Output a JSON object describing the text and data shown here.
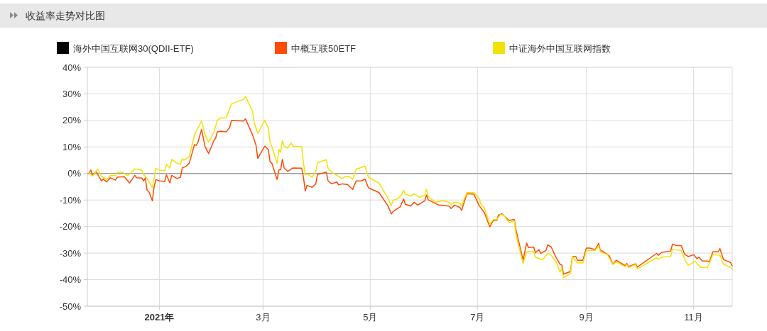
{
  "chart_data": {
    "type": "line",
    "title": "收益率走势对比图",
    "xlim": [
      "2020-11-21",
      "2021-11-23"
    ],
    "ylim": [
      -50,
      40
    ],
    "xticks": [
      {
        "value": "2021-01-01",
        "label": "2021年"
      },
      {
        "value": "2021-03-01",
        "label": "3月"
      },
      {
        "value": "2021-05-01",
        "label": "5月"
      },
      {
        "value": "2021-07-01",
        "label": "7月"
      },
      {
        "value": "2021-09-01",
        "label": "9月"
      },
      {
        "value": "2021-11-01",
        "label": "11月"
      }
    ],
    "yticks": [
      {
        "value": 40,
        "label": "40%"
      },
      {
        "value": 30,
        "label": "30%"
      },
      {
        "value": 20,
        "label": "20%"
      },
      {
        "value": 10,
        "label": "10%"
      },
      {
        "value": 0,
        "label": "0%"
      },
      {
        "value": -10,
        "label": "-10%"
      },
      {
        "value": -20,
        "label": "-20%"
      },
      {
        "value": -30,
        "label": "-30%"
      },
      {
        "value": -40,
        "label": "-40%"
      },
      {
        "value": -50,
        "label": "-50%"
      }
    ],
    "grid": true,
    "legend": "top",
    "ref_lines": [
      {
        "axis": "y",
        "value": 0,
        "color": "#a0a0a0"
      }
    ],
    "series": [
      {
        "name": "海外中国互联网30(QDII-ETF)",
        "color": "#000000"
      },
      {
        "name": "中概互联50ETF",
        "color": "#ff4a00",
        "x": [
          "2020-11-22",
          "2020-11-23",
          "2020-11-24",
          "2020-11-26",
          "2020-11-29",
          "2020-11-30",
          "2020-12-02",
          "2020-12-04",
          "2020-12-07",
          "2020-12-08",
          "2020-12-12",
          "2020-12-15",
          "2020-12-18",
          "2020-12-19",
          "2020-12-22",
          "2020-12-23",
          "2020-12-24",
          "2020-12-25",
          "2020-12-26",
          "2020-12-28",
          "2020-12-29",
          "2020-12-30",
          "2021-01-01",
          "2021-01-04",
          "2021-01-05",
          "2021-01-07",
          "2021-01-08",
          "2021-01-11",
          "2021-01-13",
          "2021-01-14",
          "2021-01-16",
          "2021-01-18",
          "2021-01-21",
          "2021-01-22",
          "2021-01-23",
          "2021-01-25",
          "2021-01-27",
          "2021-01-29",
          "2021-02-01",
          "2021-02-02",
          "2021-02-03",
          "2021-02-05",
          "2021-02-08",
          "2021-02-10",
          "2021-02-11",
          "2021-02-18",
          "2021-02-19",
          "2021-02-23",
          "2021-02-25",
          "2021-02-26",
          "2021-03-02",
          "2021-03-04",
          "2021-03-05",
          "2021-03-06",
          "2021-03-09",
          "2021-03-10",
          "2021-03-11",
          "2021-03-12",
          "2021-03-13",
          "2021-03-15",
          "2021-03-18",
          "2021-03-23",
          "2021-03-24",
          "2021-03-25",
          "2021-03-26",
          "2021-03-29",
          "2021-03-31",
          "2021-04-01",
          "2021-04-06",
          "2021-04-07",
          "2021-04-09",
          "2021-04-12",
          "2021-04-13",
          "2021-04-15",
          "2021-04-18",
          "2021-04-21",
          "2021-04-23",
          "2021-04-26",
          "2021-04-28",
          "2021-04-30",
          "2021-05-06",
          "2021-05-11",
          "2021-05-13",
          "2021-05-14",
          "2021-05-18",
          "2021-05-20",
          "2021-05-21",
          "2021-05-24",
          "2021-05-26",
          "2021-05-28",
          "2021-06-01",
          "2021-06-02",
          "2021-06-03",
          "2021-06-09",
          "2021-06-15",
          "2021-06-16",
          "2021-06-18",
          "2021-06-21",
          "2021-06-22",
          "2021-06-25",
          "2021-06-29",
          "2021-07-02",
          "2021-07-05",
          "2021-07-08",
          "2021-07-10",
          "2021-07-12",
          "2021-07-13",
          "2021-07-15",
          "2021-07-19",
          "2021-07-22",
          "2021-07-23",
          "2021-07-27",
          "2021-07-29",
          "2021-07-30",
          "2021-08-02",
          "2021-08-03",
          "2021-08-05",
          "2021-08-06",
          "2021-08-09",
          "2021-08-10",
          "2021-08-12",
          "2021-08-14",
          "2021-08-17",
          "2021-08-18",
          "2021-08-19",
          "2021-08-23",
          "2021-08-24",
          "2021-08-26",
          "2021-08-27",
          "2021-08-30",
          "2021-09-01",
          "2021-09-03",
          "2021-09-06",
          "2021-09-08",
          "2021-09-09",
          "2021-09-10",
          "2021-09-14",
          "2021-09-16",
          "2021-09-18",
          "2021-09-23",
          "2021-09-24",
          "2021-09-25",
          "2021-09-29",
          "2021-09-30",
          "2021-10-11",
          "2021-10-12",
          "2021-10-14",
          "2021-10-19",
          "2021-10-20",
          "2021-10-22",
          "2021-10-25",
          "2021-10-27",
          "2021-10-29",
          "2021-11-01",
          "2021-11-03",
          "2021-11-04",
          "2021-11-06",
          "2021-11-09",
          "2021-11-10",
          "2021-11-12",
          "2021-11-15",
          "2021-11-16",
          "2021-11-18",
          "2021-11-22",
          "2021-11-23"
        ],
        "values": [
          0.2,
          1.3,
          -0.7,
          0.8,
          -2.8,
          -2.1,
          -3.2,
          -1.6,
          -2.5,
          -1.4,
          -1.2,
          -3.6,
          -0.7,
          -1.6,
          -1.7,
          -2.8,
          -1.7,
          -6.3,
          -6.8,
          -10.3,
          -5.0,
          -2.3,
          -2.8,
          -3.0,
          -0.5,
          -3.6,
          -0.7,
          -1.9,
          -1.4,
          2.1,
          2.6,
          3.9,
          10.9,
          10.6,
          11.9,
          16.6,
          10.1,
          7.5,
          12.4,
          13.3,
          15.7,
          15.9,
          15.7,
          17.3,
          20.0,
          19.8,
          20.6,
          14.6,
          10.6,
          5.7,
          10.3,
          9.0,
          4.4,
          3.9,
          -2.3,
          1.4,
          1.4,
          5.3,
          2.1,
          0.8,
          2.1,
          2.0,
          -1.4,
          -6.6,
          -4.5,
          -5.2,
          -3.9,
          -0.3,
          0.5,
          -2.8,
          -3.9,
          -3.2,
          -4.3,
          -3.9,
          -4.1,
          -6.0,
          -2.8,
          -2.8,
          -2.1,
          -5.4,
          -7.2,
          -12.1,
          -15.2,
          -14.3,
          -12.6,
          -9.6,
          -11.6,
          -12.3,
          -10.8,
          -11.9,
          -10.3,
          -8.1,
          -9.9,
          -11.9,
          -12.3,
          -13.2,
          -11.9,
          -12.8,
          -13.9,
          -7.6,
          -7.8,
          -12.1,
          -14.8,
          -20.1,
          -17.7,
          -17.7,
          -15.7,
          -15.2,
          -17.7,
          -17.3,
          -21.4,
          -32.6,
          -26.2,
          -27.9,
          -27.7,
          -29.9,
          -28.7,
          -30.1,
          -29.0,
          -26.9,
          -27.7,
          -30.6,
          -34.2,
          -34.5,
          -37.9,
          -36.9,
          -31.3,
          -31.3,
          -32.7,
          -32.7,
          -28.1,
          -28.1,
          -28.7,
          -26.3,
          -29.2,
          -29.2,
          -31.0,
          -34.2,
          -32.7,
          -34.7,
          -33.9,
          -35.1,
          -34.0,
          -35.3,
          -30.1,
          -30.8,
          -29.7,
          -29.2,
          -26.6,
          -27.1,
          -27.2,
          -30.5,
          -31.3,
          -30.6,
          -32.1,
          -31.5,
          -33.0,
          -33.0,
          -33.3,
          -29.5,
          -29.5,
          -28.3,
          -32.4,
          -33.5,
          -34.8
        ]
      },
      {
        "name": "中证海外中国互联网指数",
        "color": "#f2e200",
        "x": [
          "2020-11-22",
          "2020-11-24",
          "2020-11-27",
          "2020-11-29",
          "2020-12-02",
          "2020-12-04",
          "2020-12-07",
          "2020-12-08",
          "2020-12-11",
          "2020-12-14",
          "2020-12-18",
          "2020-12-22",
          "2020-12-23",
          "2020-12-25",
          "2020-12-28",
          "2020-12-30",
          "2021-01-01",
          "2021-01-04",
          "2021-01-05",
          "2021-01-07",
          "2021-01-08",
          "2021-01-11",
          "2021-01-13",
          "2021-01-14",
          "2021-01-15",
          "2021-01-18",
          "2021-01-21",
          "2021-01-22",
          "2021-01-25",
          "2021-01-27",
          "2021-01-29",
          "2021-02-01",
          "2021-02-03",
          "2021-02-05",
          "2021-02-08",
          "2021-02-11",
          "2021-02-18",
          "2021-02-19",
          "2021-02-23",
          "2021-02-24",
          "2021-02-26",
          "2021-03-02",
          "2021-03-04",
          "2021-03-05",
          "2021-03-06",
          "2021-03-09",
          "2021-03-10",
          "2021-03-11",
          "2021-03-12",
          "2021-03-13",
          "2021-03-15",
          "2021-03-17",
          "2021-03-18",
          "2021-03-23",
          "2021-03-24",
          "2021-03-25",
          "2021-03-26",
          "2021-03-29",
          "2021-03-31",
          "2021-04-01",
          "2021-04-06",
          "2021-04-07",
          "2021-04-09",
          "2021-04-12",
          "2021-04-15",
          "2021-04-17",
          "2021-04-19",
          "2021-04-21",
          "2021-04-23",
          "2021-04-28",
          "2021-04-30",
          "2021-05-06",
          "2021-05-11",
          "2021-05-13",
          "2021-05-14",
          "2021-05-17",
          "2021-05-19",
          "2021-05-20",
          "2021-05-21",
          "2021-05-24",
          "2021-05-26",
          "2021-05-29",
          "2021-06-01",
          "2021-06-02",
          "2021-06-03",
          "2021-06-07",
          "2021-06-11",
          "2021-06-15",
          "2021-06-16",
          "2021-06-18",
          "2021-06-21",
          "2021-06-22",
          "2021-06-25",
          "2021-06-29",
          "2021-07-02",
          "2021-07-03",
          "2021-07-05",
          "2021-07-08",
          "2021-07-10",
          "2021-07-12",
          "2021-07-14",
          "2021-07-16",
          "2021-07-19",
          "2021-07-22",
          "2021-07-23",
          "2021-07-27",
          "2021-07-29",
          "2021-08-02",
          "2021-08-03",
          "2021-08-07",
          "2021-08-10",
          "2021-08-12",
          "2021-08-15",
          "2021-08-17",
          "2021-08-18",
          "2021-08-19",
          "2021-08-23",
          "2021-08-24",
          "2021-08-27",
          "2021-08-30",
          "2021-09-01",
          "2021-09-06",
          "2021-09-08",
          "2021-09-09",
          "2021-09-13",
          "2021-09-16",
          "2021-09-18",
          "2021-09-23",
          "2021-09-24",
          "2021-09-25",
          "2021-09-29",
          "2021-09-30",
          "2021-10-11",
          "2021-10-12",
          "2021-10-14",
          "2021-10-19",
          "2021-10-20",
          "2021-10-25",
          "2021-10-27",
          "2021-10-29",
          "2021-11-02",
          "2021-11-03",
          "2021-11-05",
          "2021-11-09",
          "2021-11-12",
          "2021-11-16",
          "2021-11-18",
          "2021-11-22",
          "2021-11-23"
        ],
        "values": [
          0.2,
          -1.0,
          1.7,
          -1.0,
          -2.3,
          -0.8,
          -0.7,
          0.5,
          0.5,
          -0.8,
          1.7,
          1.3,
          -0.3,
          -1.9,
          -5.4,
          2.0,
          1.3,
          1.1,
          3.4,
          2.0,
          5.3,
          3.9,
          3.5,
          5.5,
          5.0,
          6.4,
          14.6,
          15.9,
          19.8,
          14.6,
          11.8,
          15.5,
          20.1,
          21.0,
          21.0,
          26.2,
          28.0,
          29.0,
          23.5,
          19.1,
          15.1,
          20.0,
          17.1,
          11.8,
          10.1,
          3.9,
          9.1,
          7.9,
          12.4,
          10.3,
          9.5,
          11.5,
          10.3,
          10.0,
          3.9,
          -0.5,
          -0.1,
          -1.4,
          0.8,
          4.1,
          5.2,
          2.0,
          0.5,
          -0.7,
          -1.9,
          -1.1,
          -1.2,
          -2.1,
          1.6,
          2.8,
          -1.4,
          -3.6,
          -9.2,
          -12.1,
          -10.1,
          -9.4,
          -7.8,
          -6.3,
          -7.8,
          -8.5,
          -7.6,
          -9.0,
          -8.1,
          -5.9,
          -8.7,
          -10.8,
          -10.3,
          -10.8,
          -11.6,
          -10.8,
          -11.2,
          -12.1,
          -7.2,
          -7.2,
          -9.4,
          -11.6,
          -13.0,
          -19.2,
          -17.3,
          -17.4,
          -15.5,
          -15.7,
          -18.5,
          -17.9,
          -23.2,
          -33.9,
          -29.5,
          -29.5,
          -31.5,
          -32.6,
          -30.1,
          -30.8,
          -33.5,
          -37.2,
          -35.7,
          -39.3,
          -37.7,
          -31.3,
          -33.7,
          -33.7,
          -29.0,
          -29.0,
          -27.2,
          -29.5,
          -30.6,
          -34.3,
          -33.3,
          -35.1,
          -34.3,
          -35.4,
          -34.3,
          -36.0,
          -31.7,
          -32.4,
          -31.5,
          -31.3,
          -28.6,
          -29.0,
          -32.4,
          -34.6,
          -33.0,
          -33.9,
          -35.4,
          -35.3,
          -30.6,
          -30.8,
          -34.2,
          -35.3,
          -36.3
        ]
      }
    ]
  }
}
